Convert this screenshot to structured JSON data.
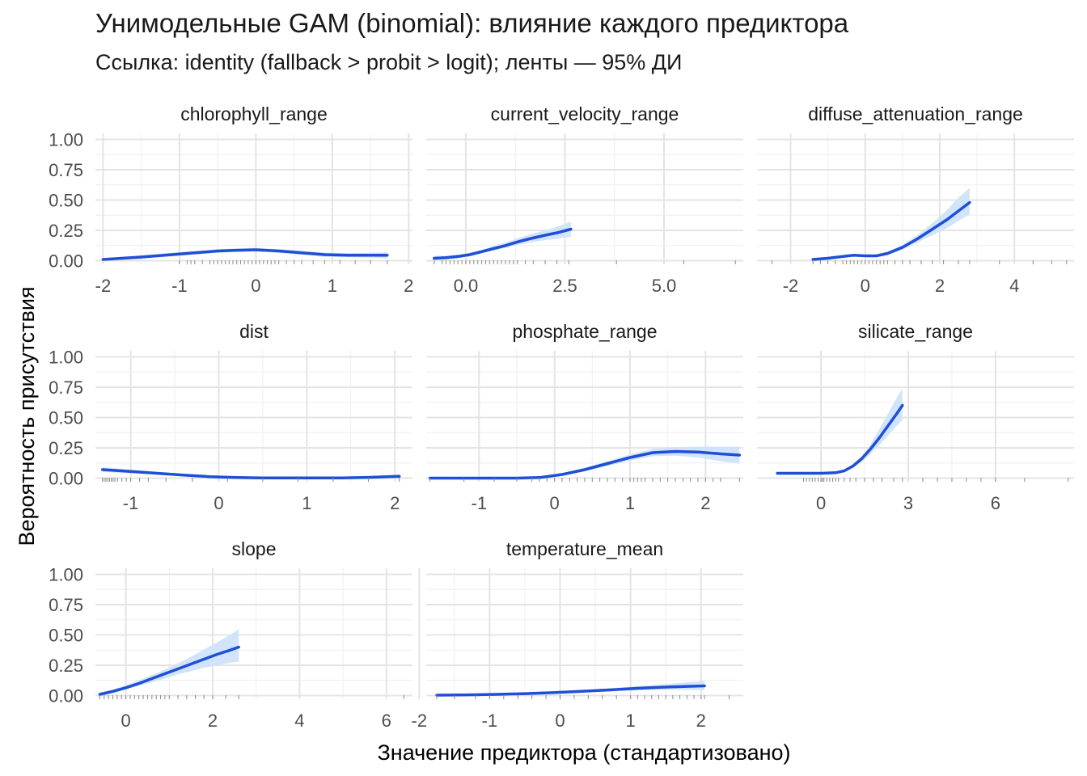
{
  "title": "Унимодельные GAM (binomial): влияние каждого предиктора",
  "subtitle": "Ссылка: identity (fallback > probit > logit); ленты — 95% ДИ",
  "xlabel": "Значение предиктора (стандартизовано)",
  "ylabel": "Вероятность присутствия",
  "colors": {
    "line": "#1f4fd6",
    "ribbon": "#cfe3fb",
    "grid_major": "#e4e4e4",
    "grid_minor": "#f1f1f1",
    "rug": "#8a8a8a"
  },
  "chart_data": {
    "type": "line",
    "layout": "facet-wrap, 3 columns, shared y-axis",
    "y_ticks": [
      0,
      0.25,
      0.5,
      0.75,
      1
    ],
    "y_tick_labels": [
      "0.00",
      "0.25",
      "0.50",
      "0.75",
      "1.00"
    ],
    "ylim": [
      -0.03,
      1.05
    ],
    "panels": [
      {
        "name": "chlorophyll_range",
        "xlim": [
          -2.1,
          2.05
        ],
        "x_ticks": [
          -2,
          -1,
          0,
          1,
          2
        ],
        "x_tick_labels": [
          "-2",
          "-1",
          "0",
          "1",
          "2"
        ],
        "x": [
          -2.0,
          -1.5,
          -1.0,
          -0.5,
          -0.3,
          0.0,
          0.3,
          0.6,
          0.9,
          1.2,
          1.5,
          1.72
        ],
        "y": [
          0.01,
          0.03,
          0.055,
          0.08,
          0.085,
          0.09,
          0.08,
          0.065,
          0.05,
          0.045,
          0.045,
          0.045
        ],
        "lower": [
          0.0,
          0.015,
          0.04,
          0.065,
          0.072,
          0.075,
          0.065,
          0.048,
          0.033,
          0.028,
          0.025,
          0.02
        ],
        "upper": [
          0.02,
          0.045,
          0.07,
          0.095,
          0.1,
          0.105,
          0.095,
          0.082,
          0.067,
          0.062,
          0.065,
          0.07
        ],
        "rug": [
          -1.0,
          -0.9,
          -0.85,
          -0.8,
          -0.7,
          -0.6,
          -0.55,
          -0.5,
          -0.45,
          -0.4,
          -0.35,
          -0.3,
          -0.25,
          -0.2,
          -0.15,
          -0.1,
          -0.05,
          0.0,
          0.05,
          0.1,
          0.15,
          0.2,
          0.25,
          0.3,
          0.4,
          0.5,
          0.6,
          0.75,
          0.9,
          1.1,
          1.3,
          1.5,
          1.72
        ]
      },
      {
        "name": "current_velocity_range",
        "xlim": [
          -1.0,
          7.0
        ],
        "x_ticks": [
          0,
          2.5,
          5
        ],
        "x_tick_labels": [
          "0.0",
          "2.5",
          "5.0"
        ],
        "x": [
          -0.8,
          -0.5,
          -0.2,
          0.1,
          0.4,
          0.7,
          1.0,
          1.3,
          1.6,
          2.0,
          2.3,
          2.65
        ],
        "y": [
          0.02,
          0.025,
          0.035,
          0.05,
          0.075,
          0.1,
          0.125,
          0.155,
          0.18,
          0.21,
          0.23,
          0.26
        ],
        "lower": [
          0.0,
          0.01,
          0.02,
          0.035,
          0.06,
          0.085,
          0.105,
          0.13,
          0.15,
          0.17,
          0.18,
          0.2
        ],
        "upper": [
          0.04,
          0.04,
          0.05,
          0.065,
          0.09,
          0.12,
          0.15,
          0.185,
          0.215,
          0.25,
          0.28,
          0.32
        ],
        "rug": [
          -0.8,
          -0.6,
          -0.5,
          -0.4,
          -0.3,
          -0.2,
          -0.1,
          0.0,
          0.1,
          0.2,
          0.3,
          0.4,
          0.5,
          0.6,
          0.7,
          0.8,
          0.9,
          1.0,
          1.1,
          1.2,
          1.3,
          1.5,
          1.7,
          2.0,
          2.3,
          2.6,
          3.8,
          5.5,
          6.8
        ]
      },
      {
        "name": "diffuse_attenuation_range",
        "xlim": [
          -2.9,
          5.6
        ],
        "x_ticks": [
          -2,
          0,
          2,
          4
        ],
        "x_tick_labels": [
          "-2",
          "0",
          "2",
          "4"
        ],
        "x": [
          -1.4,
          -1.0,
          -0.6,
          -0.3,
          0.0,
          0.3,
          0.6,
          1.0,
          1.4,
          1.8,
          2.2,
          2.5,
          2.8
        ],
        "y": [
          0.01,
          0.02,
          0.035,
          0.045,
          0.04,
          0.04,
          0.06,
          0.11,
          0.18,
          0.26,
          0.34,
          0.41,
          0.48
        ],
        "lower": [
          0.0,
          0.01,
          0.025,
          0.035,
          0.03,
          0.03,
          0.045,
          0.09,
          0.15,
          0.21,
          0.27,
          0.33,
          0.38
        ],
        "upper": [
          0.02,
          0.03,
          0.045,
          0.055,
          0.05,
          0.05,
          0.075,
          0.13,
          0.21,
          0.31,
          0.42,
          0.52,
          0.6
        ],
        "rug": [
          -2.5,
          -1.4,
          -1.2,
          -1.0,
          -0.8,
          -0.6,
          -0.5,
          -0.4,
          -0.3,
          -0.2,
          -0.1,
          0.0,
          0.1,
          0.2,
          0.3,
          0.4,
          0.5,
          0.6,
          0.8,
          1.0,
          1.2,
          1.5,
          1.8,
          2.1,
          2.5,
          2.8,
          3.6,
          4.5,
          5.0,
          5.4
        ]
      },
      {
        "name": "dist",
        "xlim": [
          -1.4,
          2.2
        ],
        "x_ticks": [
          -1,
          0,
          1,
          2
        ],
        "x_tick_labels": [
          "-1",
          "0",
          "1",
          "2"
        ],
        "x": [
          -1.32,
          -1.0,
          -0.7,
          -0.4,
          -0.1,
          0.2,
          0.5,
          0.8,
          1.1,
          1.4,
          1.7,
          2.05
        ],
        "y": [
          0.07,
          0.055,
          0.04,
          0.025,
          0.012,
          0.005,
          0.002,
          0.002,
          0.002,
          0.002,
          0.006,
          0.015
        ],
        "lower": [
          0.05,
          0.04,
          0.03,
          0.017,
          0.005,
          0.0,
          0.0,
          0.0,
          0.0,
          0.0,
          0.0,
          0.0
        ],
        "upper": [
          0.09,
          0.07,
          0.052,
          0.035,
          0.022,
          0.015,
          0.01,
          0.01,
          0.01,
          0.012,
          0.018,
          0.03
        ],
        "rug": [
          -1.32,
          -1.3,
          -1.28,
          -1.26,
          -1.24,
          -1.22,
          -1.2,
          -1.18,
          -1.15,
          -1.1,
          -1.05,
          -1.0,
          -0.9,
          -0.8,
          -0.6,
          -0.3,
          0.1,
          0.5,
          0.9,
          1.3,
          1.7,
          2.05
        ]
      },
      {
        "name": "phosphate_range",
        "xlim": [
          -1.7,
          2.5
        ],
        "x_ticks": [
          -1,
          0,
          1,
          2
        ],
        "x_tick_labels": [
          "-1",
          "0",
          "1",
          "2"
        ],
        "x": [
          -1.65,
          -1.3,
          -0.9,
          -0.5,
          -0.2,
          0.1,
          0.4,
          0.7,
          1.0,
          1.3,
          1.6,
          1.9,
          2.2,
          2.45
        ],
        "y": [
          0.0,
          0.0,
          0.0,
          0.0,
          0.005,
          0.03,
          0.07,
          0.12,
          0.17,
          0.21,
          0.22,
          0.215,
          0.2,
          0.19
        ],
        "lower": [
          0.0,
          0.0,
          0.0,
          0.0,
          0.0,
          0.02,
          0.055,
          0.1,
          0.145,
          0.18,
          0.185,
          0.17,
          0.14,
          0.12
        ],
        "upper": [
          0.005,
          0.005,
          0.005,
          0.005,
          0.012,
          0.04,
          0.085,
          0.14,
          0.195,
          0.24,
          0.255,
          0.26,
          0.26,
          0.26
        ],
        "rug": [
          -1.65,
          -1.2,
          -0.8,
          -0.5,
          -0.3,
          -0.2,
          -0.1,
          0.0,
          0.1,
          0.2,
          0.3,
          0.4,
          0.5,
          0.6,
          0.7,
          0.8,
          0.9,
          1.0,
          1.05,
          1.1,
          1.15,
          1.2,
          1.3,
          1.4,
          1.5,
          1.6,
          1.7,
          1.8,
          1.9,
          2.0,
          2.1,
          2.2,
          2.45
        ]
      },
      {
        "name": "silicate_range",
        "xlim": [
          -2.2,
          8.7
        ],
        "x_ticks": [
          0,
          3,
          6
        ],
        "x_tick_labels": [
          "0",
          "3",
          "6"
        ],
        "x": [
          -1.5,
          -1.0,
          -0.5,
          0.0,
          0.5,
          0.8,
          1.1,
          1.4,
          1.7,
          2.0,
          2.3,
          2.6,
          2.8
        ],
        "y": [
          0.04,
          0.04,
          0.04,
          0.04,
          0.045,
          0.06,
          0.1,
          0.16,
          0.24,
          0.33,
          0.43,
          0.53,
          0.6
        ],
        "lower": [
          0.03,
          0.03,
          0.03,
          0.032,
          0.036,
          0.05,
          0.085,
          0.135,
          0.2,
          0.27,
          0.35,
          0.43,
          0.48
        ],
        "upper": [
          0.05,
          0.05,
          0.05,
          0.048,
          0.054,
          0.07,
          0.115,
          0.185,
          0.28,
          0.4,
          0.53,
          0.66,
          0.74
        ],
        "rug": [
          -0.6,
          -0.5,
          -0.4,
          -0.3,
          -0.2,
          -0.1,
          0.0,
          0.05,
          0.1,
          0.2,
          0.3,
          0.4,
          0.5,
          0.6,
          0.8,
          1.0,
          1.2,
          1.5,
          1.8,
          2.1,
          2.5,
          2.8,
          3.5,
          4.0,
          4.5,
          5.0,
          5.5,
          6.0,
          7.0,
          8.5
        ]
      },
      {
        "name": "slope",
        "xlim": [
          -0.7,
          6.6
        ],
        "x_ticks": [
          0,
          2,
          4,
          6
        ],
        "x_tick_labels": [
          "0",
          "2",
          "4",
          "6"
        ],
        "x": [
          -0.6,
          -0.3,
          0.0,
          0.3,
          0.6,
          0.9,
          1.2,
          1.5,
          1.8,
          2.1,
          2.4,
          2.6
        ],
        "y": [
          0.01,
          0.035,
          0.065,
          0.1,
          0.14,
          0.18,
          0.22,
          0.26,
          0.3,
          0.34,
          0.375,
          0.4
        ],
        "lower": [
          0.0,
          0.02,
          0.05,
          0.08,
          0.11,
          0.14,
          0.175,
          0.2,
          0.23,
          0.25,
          0.27,
          0.28
        ],
        "upper": [
          0.025,
          0.05,
          0.085,
          0.125,
          0.17,
          0.215,
          0.265,
          0.32,
          0.38,
          0.44,
          0.5,
          0.55
        ],
        "rug": [
          -0.6,
          -0.5,
          -0.4,
          -0.3,
          -0.2,
          -0.1,
          0.0,
          0.1,
          0.2,
          0.3,
          0.4,
          0.5,
          0.6,
          0.7,
          0.8,
          0.9,
          1.0,
          1.2,
          1.4,
          1.6,
          1.8,
          2.0,
          2.3,
          2.6,
          6.4
        ]
      },
      {
        "name": "temperature_mean",
        "xlim": [
          -1.9,
          2.6
        ],
        "x_ticks": [
          -2,
          -1,
          0,
          1,
          2
        ],
        "x_tick_labels": [
          "-2",
          "-1",
          "0",
          "1",
          "2"
        ],
        "x": [
          -1.75,
          -1.3,
          -0.9,
          -0.5,
          -0.1,
          0.3,
          0.7,
          1.1,
          1.5,
          1.8,
          2.05
        ],
        "y": [
          0.003,
          0.006,
          0.01,
          0.016,
          0.024,
          0.035,
          0.047,
          0.06,
          0.07,
          0.076,
          0.08
        ],
        "lower": [
          0.0,
          0.0,
          0.003,
          0.008,
          0.015,
          0.024,
          0.034,
          0.043,
          0.048,
          0.047,
          0.045
        ],
        "upper": [
          0.01,
          0.013,
          0.018,
          0.024,
          0.033,
          0.046,
          0.06,
          0.078,
          0.095,
          0.11,
          0.12
        ],
        "rug": [
          -1.75,
          -1.5,
          -1.2,
          -1.0,
          -0.8,
          -0.6,
          -0.4,
          -0.2,
          0.0,
          0.2,
          0.4,
          0.6,
          0.8,
          1.0,
          1.1,
          1.2,
          1.3,
          1.4,
          1.5,
          1.6,
          1.7,
          1.8,
          1.9,
          2.0,
          2.05,
          2.4
        ]
      }
    ]
  }
}
